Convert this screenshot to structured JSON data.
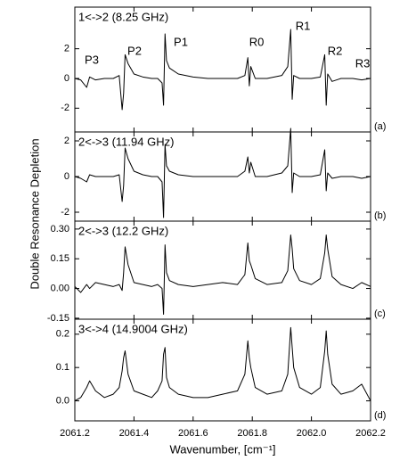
{
  "y_label": "Double Resonance Depletion",
  "x_label": "Wavenumber, [cm⁻¹]",
  "xlim": [
    2061.2,
    2062.2
  ],
  "xticks": [
    2061.2,
    2061.4,
    2061.6,
    2061.8,
    {
      "value": 2062,
      "label": "2062.0"
    },
    2062.2
  ],
  "chart_data": [
    {
      "type": "line",
      "title": "1<->2 (8.25 GHz)",
      "panel_label": "(a)",
      "color": "#000000",
      "annotations": [
        "P3",
        "P2",
        "P1",
        "R0",
        "R1",
        "R2",
        "R3"
      ],
      "ylim": [
        -3.6,
        4.8
      ],
      "yticks": [
        -2,
        0,
        2
      ],
      "x": [
        2061.2,
        2061.22,
        2061.24,
        2061.25,
        2061.27,
        2061.3,
        2061.33,
        2061.35,
        2061.36,
        2061.365,
        2061.37,
        2061.38,
        2061.4,
        2061.43,
        2061.46,
        2061.48,
        2061.495,
        2061.5,
        2061.505,
        2061.51,
        2061.52,
        2061.55,
        2061.6,
        2061.65,
        2061.7,
        2061.75,
        2061.775,
        2061.785,
        2061.79,
        2061.795,
        2061.81,
        2061.85,
        2061.9,
        2061.92,
        2061.93,
        2061.935,
        2061.94,
        2061.96,
        2062.0,
        2062.03,
        2062.045,
        2062.05,
        2062.055,
        2062.07,
        2062.1,
        2062.14,
        2062.17,
        2062.2
      ],
      "values": [
        0,
        -0.1,
        -0.6,
        0.1,
        -0.1,
        0,
        0,
        0.2,
        -2.1,
        -1.0,
        1.6,
        1.0,
        0.3,
        0.1,
        0,
        0,
        -0.3,
        -1.8,
        3.0,
        1.2,
        0.7,
        0.3,
        0.1,
        0,
        0,
        0,
        0.2,
        1.4,
        -0.5,
        0.8,
        0,
        0,
        0.2,
        0.8,
        3.3,
        -1.4,
        0.2,
        0,
        0,
        0.1,
        1.6,
        -1.8,
        0.3,
        -0.2,
        0,
        0,
        -0.1,
        0
      ]
    },
    {
      "type": "line",
      "title": "2<->3 (11.94 GHz)",
      "panel_label": "(b)",
      "color": "#000000",
      "ylim": [
        -2.5,
        2.5
      ],
      "yticks": [
        -2,
        0,
        2
      ],
      "x": [
        2061.2,
        2061.22,
        2061.24,
        2061.25,
        2061.27,
        2061.3,
        2061.33,
        2061.35,
        2061.36,
        2061.365,
        2061.37,
        2061.38,
        2061.4,
        2061.43,
        2061.46,
        2061.48,
        2061.495,
        2061.5,
        2061.505,
        2061.51,
        2061.52,
        2061.55,
        2061.6,
        2061.65,
        2061.7,
        2061.75,
        2061.775,
        2061.785,
        2061.79,
        2061.795,
        2061.81,
        2061.85,
        2061.9,
        2061.92,
        2061.93,
        2061.935,
        2061.94,
        2061.96,
        2062.0,
        2062.03,
        2062.045,
        2062.05,
        2062.055,
        2062.07,
        2062.1,
        2062.14,
        2062.17,
        2062.2
      ],
      "values": [
        0,
        -0.1,
        -0.3,
        0.1,
        0,
        0,
        0,
        0.1,
        -1.4,
        -0.5,
        1.6,
        1.0,
        0.3,
        0.1,
        0,
        0,
        -0.3,
        -2.3,
        1.8,
        0.6,
        0.3,
        0.1,
        0,
        0,
        0,
        0,
        0.3,
        1.1,
        0.2,
        0.8,
        0,
        0,
        0.2,
        0.6,
        2.7,
        -0.9,
        0.2,
        0,
        0,
        0.1,
        1.5,
        -0.8,
        0.2,
        -0.1,
        0,
        0,
        -0.1,
        0
      ]
    },
    {
      "type": "line",
      "title": "2<->3 (12.2 GHz)",
      "panel_label": "(c)",
      "color": "#000000",
      "ylim": [
        -0.155,
        0.34
      ],
      "yticks": [
        {
          "value": -0.15,
          "label": "-0.15"
        },
        {
          "value": 0,
          "label": "0.00"
        },
        {
          "value": 0.15,
          "label": "0.15"
        },
        {
          "value": 0.3,
          "label": "0.30"
        }
      ],
      "x": [
        2061.2,
        2061.22,
        2061.24,
        2061.25,
        2061.27,
        2061.3,
        2061.33,
        2061.35,
        2061.36,
        2061.365,
        2061.37,
        2061.38,
        2061.4,
        2061.43,
        2061.46,
        2061.48,
        2061.495,
        2061.5,
        2061.505,
        2061.51,
        2061.52,
        2061.55,
        2061.6,
        2061.65,
        2061.7,
        2061.75,
        2061.775,
        2061.785,
        2061.79,
        2061.795,
        2061.81,
        2061.85,
        2061.9,
        2061.92,
        2061.93,
        2061.935,
        2061.94,
        2061.96,
        2062.0,
        2062.03,
        2062.045,
        2062.05,
        2062.055,
        2062.07,
        2062.1,
        2062.14,
        2062.17,
        2062.2
      ],
      "values": [
        0.01,
        -0.02,
        0.02,
        0,
        0.03,
        0.02,
        0.01,
        0.02,
        -0.01,
        0.08,
        0.21,
        0.12,
        0.03,
        0.02,
        0.01,
        0.02,
        0,
        -0.13,
        0.22,
        0.08,
        0.04,
        0.02,
        0.01,
        0.02,
        0.03,
        0.02,
        0.07,
        0.23,
        0.14,
        0.12,
        0.05,
        0.02,
        0.03,
        0.09,
        0.27,
        0.2,
        0.1,
        0.04,
        0.02,
        0.05,
        0.18,
        0.27,
        0.2,
        0.06,
        0.02,
        0,
        0.03,
        0.01
      ]
    },
    {
      "type": "line",
      "title": "3<->4 (14.9004 GHz)",
      "panel_label": "(d)",
      "color": "#000000",
      "ylim": [
        -0.06,
        0.245
      ],
      "yticks": [
        {
          "value": 0,
          "label": "0.0"
        },
        0.1,
        0.2
      ],
      "x": [
        2061.2,
        2061.22,
        2061.24,
        2061.25,
        2061.27,
        2061.3,
        2061.33,
        2061.35,
        2061.36,
        2061.365,
        2061.37,
        2061.38,
        2061.4,
        2061.43,
        2061.46,
        2061.48,
        2061.495,
        2061.5,
        2061.505,
        2061.51,
        2061.52,
        2061.55,
        2061.6,
        2061.65,
        2061.7,
        2061.75,
        2061.775,
        2061.785,
        2061.79,
        2061.795,
        2061.81,
        2061.85,
        2061.9,
        2061.92,
        2061.93,
        2061.935,
        2061.94,
        2061.96,
        2062.0,
        2062.03,
        2062.045,
        2062.05,
        2062.055,
        2062.07,
        2062.1,
        2062.14,
        2062.17,
        2062.2
      ],
      "values": [
        0,
        0.01,
        0.04,
        0.06,
        0.03,
        0.01,
        0.02,
        0.04,
        0.09,
        0.13,
        0.15,
        0.08,
        0.03,
        0.02,
        0.01,
        0.03,
        0.06,
        0.14,
        0.16,
        0.07,
        0.04,
        0.02,
        0.01,
        0.01,
        0.02,
        0.03,
        0.08,
        0.18,
        0.13,
        0.1,
        0.04,
        0.02,
        0.03,
        0.08,
        0.22,
        0.16,
        0.1,
        0.04,
        0.02,
        0.04,
        0.15,
        0.21,
        0.14,
        0.05,
        0.02,
        0.03,
        0.05,
        0
      ]
    }
  ]
}
